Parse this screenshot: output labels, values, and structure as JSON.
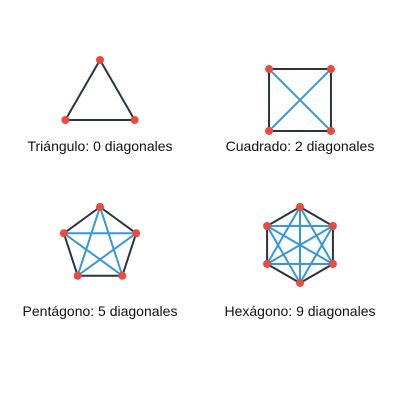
{
  "colors": {
    "edge": "#2b3440",
    "diagonal": "#3498db",
    "vertex": "#e74c3c",
    "caption": "#111111"
  },
  "shapes": [
    {
      "key": "triangle",
      "sides": 3,
      "diagonals": 0,
      "caption": "Triángulo: 0 diagonales"
    },
    {
      "key": "square",
      "sides": 4,
      "diagonals": 2,
      "caption": "Cuadrado: 2 diagonales"
    },
    {
      "key": "pentagon",
      "sides": 5,
      "diagonals": 5,
      "caption": "Pentágono: 5 diagonales"
    },
    {
      "key": "hexagon",
      "sides": 6,
      "diagonals": 9,
      "caption": "Hexágono: 9 diagonales"
    }
  ]
}
